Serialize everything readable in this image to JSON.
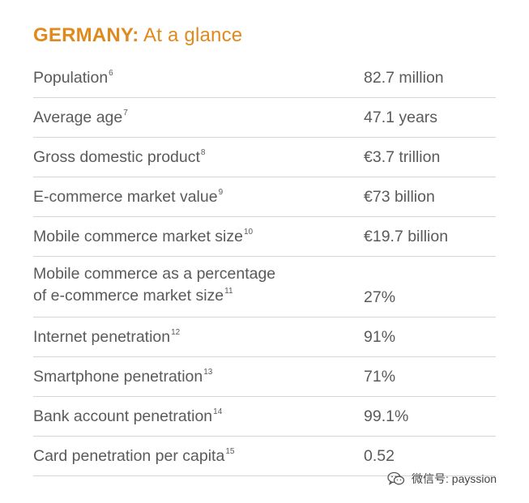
{
  "title": {
    "country": "GERMANY:",
    "subtitle": "At a glance"
  },
  "rows": [
    {
      "label": "Population",
      "note": "6",
      "value": "82.7 million"
    },
    {
      "label": "Average age",
      "note": "7",
      "value": "47.1 years"
    },
    {
      "label": "Gross domestic product",
      "note": "8",
      "value": "€3.7 trillion"
    },
    {
      "label": "E-commerce market value",
      "note": "9",
      "value": "€73 billion"
    },
    {
      "label": "Mobile commerce market size",
      "note": "10",
      "value": "€19.7 billion"
    },
    {
      "label_line1": "Mobile commerce as a percentage",
      "label_line2": "of e-commerce market size",
      "note": "11",
      "value": "27%"
    },
    {
      "label": "Internet penetration",
      "note": "12",
      "value": "91%"
    },
    {
      "label": "Smartphone penetration",
      "note": "13",
      "value": "71%"
    },
    {
      "label": "Bank account penetration",
      "note": "14",
      "value": "99.1%"
    },
    {
      "label": "Card penetration per capita",
      "note": "15",
      "value": "0.52"
    }
  ],
  "watermark": {
    "text": "微信号: payssion",
    "icon": "wechat-icon"
  },
  "colors": {
    "title": "#e08a1e",
    "text": "#5a5a5a",
    "divider": "#d6d6d6"
  }
}
